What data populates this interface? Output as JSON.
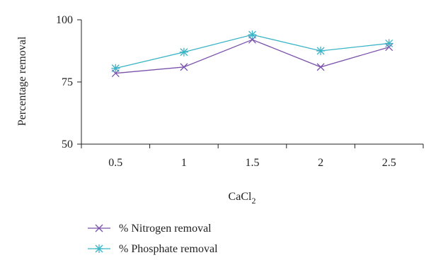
{
  "chart_data": {
    "type": "line",
    "title": "",
    "xlabel": "CaCl",
    "xlabel_subscript": "2",
    "ylabel": "Percentage removal",
    "categories": [
      "0.5",
      "1",
      "1.5",
      "2",
      "2.5"
    ],
    "ylim": [
      50,
      100
    ],
    "yticks": [
      "50",
      "75",
      "100"
    ],
    "grid": false,
    "legend_position": "bottom-left",
    "series": [
      {
        "name": "% Nitrogen removal",
        "color": "#7b52ab",
        "marker": "x",
        "values": [
          78.5,
          81,
          92,
          81,
          89
        ]
      },
      {
        "name": "% Phosphate removal",
        "color": "#3ab4c6",
        "marker": "asterisk",
        "values": [
          80.5,
          87,
          94,
          87.5,
          90.5
        ]
      }
    ]
  }
}
